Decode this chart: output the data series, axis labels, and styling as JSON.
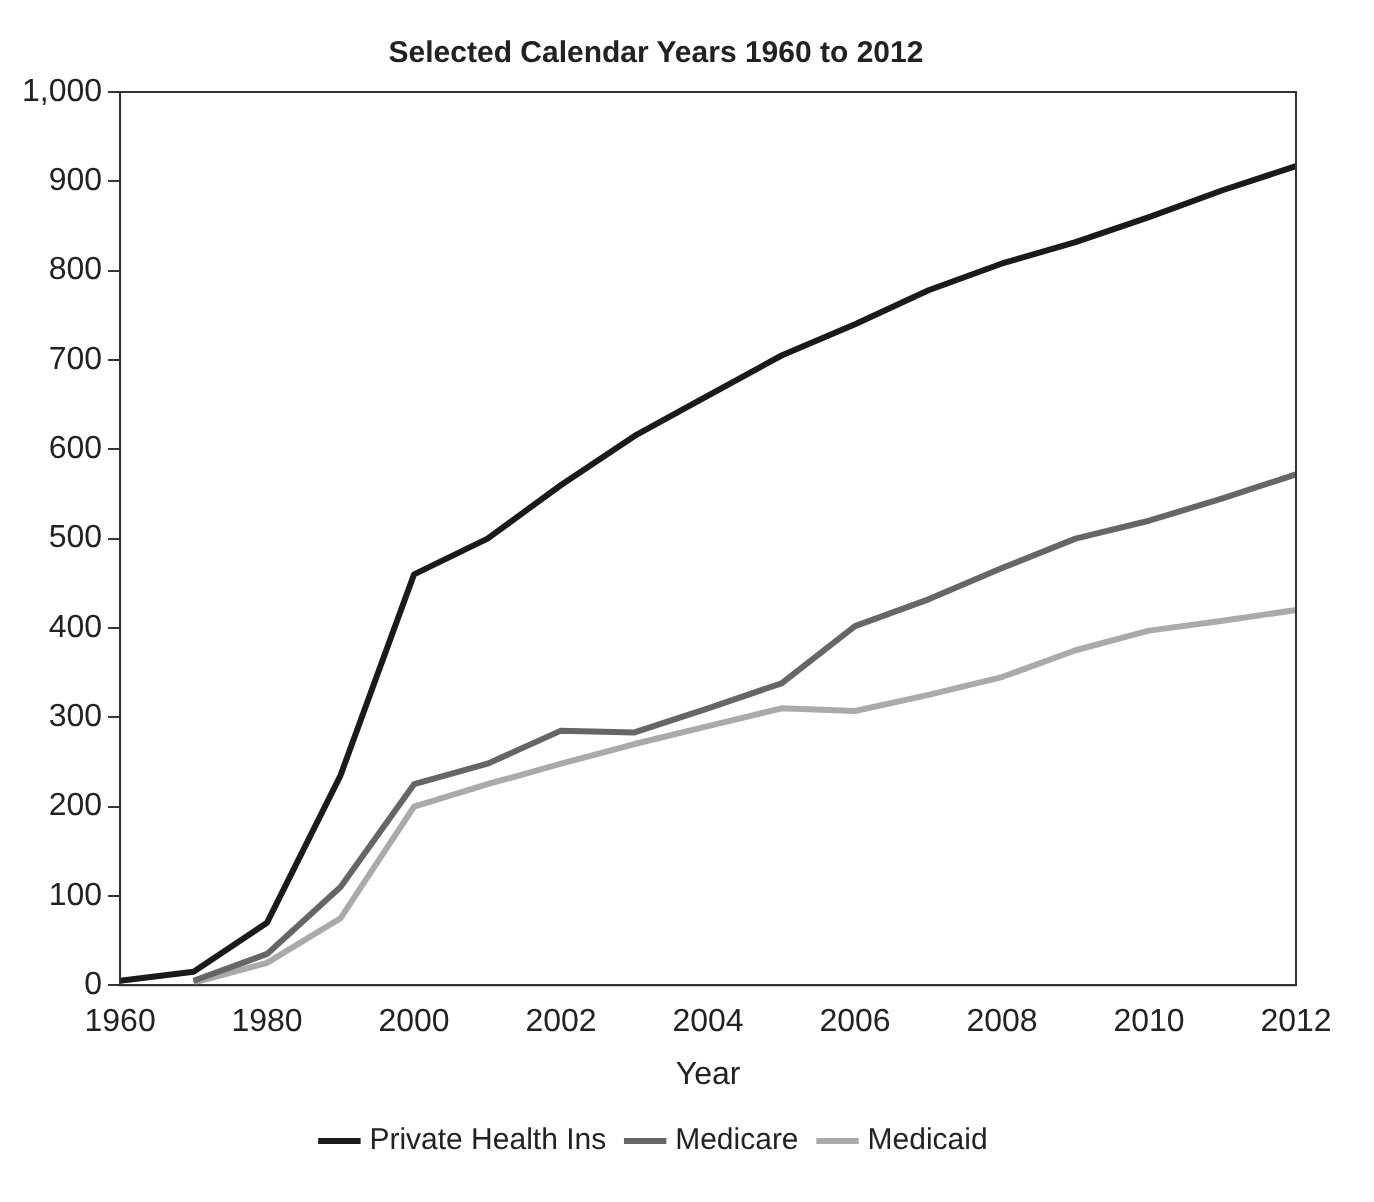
{
  "chart_data": {
    "type": "line",
    "title": "Selected Calendar Years 1960 to 2012",
    "xlabel": "Year",
    "categories": [
      "1960",
      null,
      "1980",
      null,
      "2000",
      null,
      "2002",
      null,
      "2004",
      null,
      "2006",
      null,
      "2008",
      null,
      "2010",
      null,
      "2012"
    ],
    "series": [
      {
        "name": "Private Health Ins",
        "color": "#1a1a1a",
        "values": [
          5,
          15,
          70,
          235,
          460,
          500,
          560,
          615,
          660,
          705,
          740,
          778,
          808,
          832,
          860,
          890,
          917
        ]
      },
      {
        "name": "Medicare",
        "color": "#666666",
        "values": [
          null,
          5,
          35,
          110,
          225,
          248,
          285,
          283,
          310,
          338,
          402,
          432,
          467,
          500,
          520,
          545,
          572
        ]
      },
      {
        "name": "Medicaid",
        "color": "#aaaaaa",
        "values": [
          null,
          3,
          25,
          75,
          200,
          225,
          248,
          270,
          290,
          310,
          307,
          325,
          345,
          375,
          397,
          408,
          420
        ]
      }
    ],
    "ylim": [
      0,
      1000
    ],
    "yticks": [
      0,
      100,
      200,
      300,
      400,
      500,
      600,
      700,
      800,
      900,
      {
        "value": 1000,
        "label": "1,000"
      }
    ],
    "grid": false,
    "legend": "bottom",
    "marker": "none",
    "line_style": "solid"
  }
}
